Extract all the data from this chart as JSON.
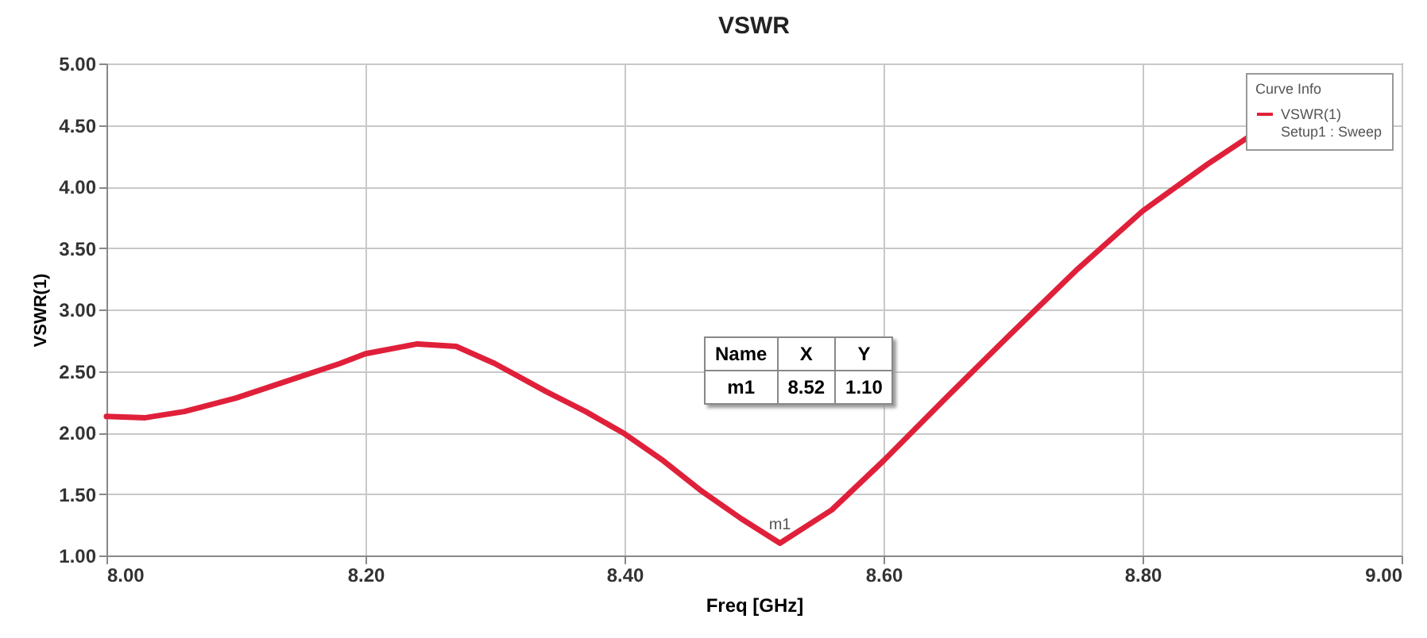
{
  "chart_data": {
    "type": "line",
    "title": "VSWR",
    "xlabel": "Freq [GHz]",
    "ylabel": "VSWR(1)",
    "legend_title": "Curve Info",
    "series": [
      {
        "name": "VSWR(1)",
        "color": "#e0203a",
        "x": [
          8.0,
          8.03,
          8.06,
          8.1,
          8.14,
          8.18,
          8.2,
          8.24,
          8.27,
          8.3,
          8.34,
          8.37,
          8.4,
          8.43,
          8.46,
          8.49,
          8.52,
          8.56,
          8.6,
          8.65,
          8.7,
          8.75,
          8.8,
          8.85,
          8.88
        ],
        "values": [
          2.13,
          2.12,
          2.17,
          2.28,
          2.42,
          2.56,
          2.64,
          2.72,
          2.7,
          2.56,
          2.33,
          2.17,
          1.99,
          1.77,
          1.52,
          1.3,
          1.1,
          1.37,
          1.77,
          2.3,
          2.82,
          3.33,
          3.8,
          4.18,
          4.39
        ]
      }
    ],
    "xlim": [
      8.0,
      9.0
    ],
    "xticks": [
      {
        "value": 8.0,
        "label": "8.00"
      },
      {
        "value": 8.2,
        "label": "8.20"
      },
      {
        "value": 8.4,
        "label": "8.40"
      },
      {
        "value": 8.6,
        "label": "8.60"
      },
      {
        "value": 8.8,
        "label": "8.80"
      },
      {
        "value": 9.0,
        "label": "9.00"
      }
    ],
    "ylim": [
      1.0,
      5.0
    ],
    "yticks": [
      {
        "value": 1.0,
        "label": "1.00"
      },
      {
        "value": 1.5,
        "label": "1.50"
      },
      {
        "value": 2.0,
        "label": "2.00"
      },
      {
        "value": 2.5,
        "label": "2.50"
      },
      {
        "value": 3.0,
        "label": "3.00"
      },
      {
        "value": 3.5,
        "label": "3.50"
      },
      {
        "value": 4.0,
        "label": "4.00"
      },
      {
        "value": 4.5,
        "label": "4.50"
      },
      {
        "value": 5.0,
        "label": "5.00"
      }
    ],
    "annotations": [
      {
        "text": "m1",
        "x": 8.52,
        "y": 1.1
      },
      "Name",
      "X",
      "Y",
      "m1",
      "8.52",
      "1.10",
      "Setup1 : Sweep"
    ],
    "grid": true,
    "legend": "top right",
    "line_style": "solid",
    "marker": "none"
  }
}
